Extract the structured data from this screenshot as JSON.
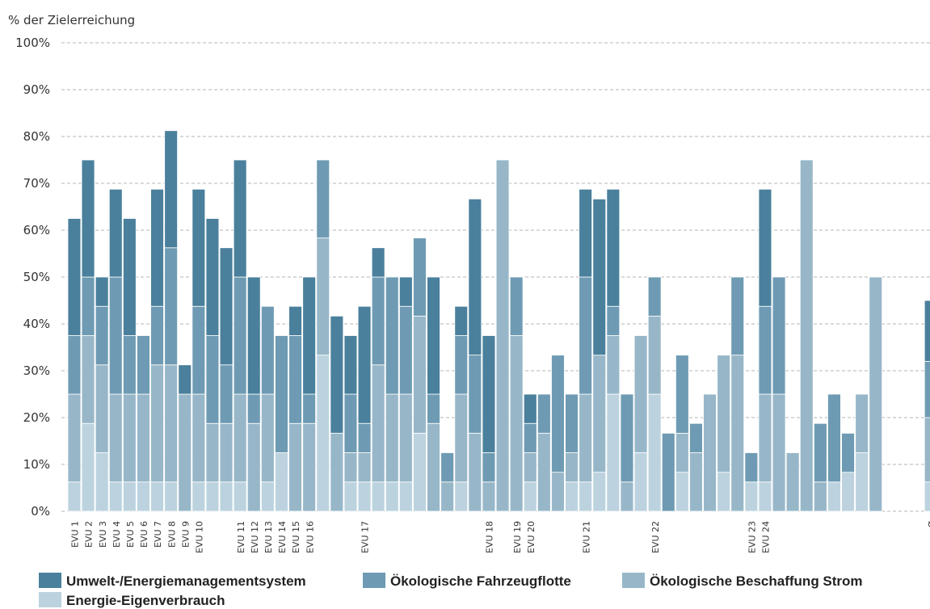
{
  "chart_data": {
    "type": "stacked_bar",
    "y_axis_label": "% der Zielerreichung",
    "ylim": [
      0,
      100
    ],
    "yticks": [
      {
        "value": 0,
        "label": "0%"
      },
      {
        "value": 10,
        "label": "10%"
      },
      {
        "value": 20,
        "label": "20%"
      },
      {
        "value": 30,
        "label": "30%"
      },
      {
        "value": 40,
        "label": "40%"
      },
      {
        "value": 50,
        "label": "50%"
      },
      {
        "value": 60,
        "label": "60%"
      },
      {
        "value": 70,
        "label": "70%"
      },
      {
        "value": 80,
        "label": "80%"
      },
      {
        "value": 90,
        "label": "90%"
      },
      {
        "value": 100,
        "label": "100%"
      }
    ],
    "grid": true,
    "categories": [
      "EVU 1",
      "EVU 2",
      "EVU 3",
      "EVU 4",
      "EVU 5",
      "EVU 6",
      "EVU 7",
      "EVU 8",
      "EVU 9",
      "EVU 10",
      null,
      null,
      "EVU 11",
      "EVU 12",
      "EVU 13",
      "EVU 14",
      "EVU 15",
      "EVU 16",
      null,
      null,
      null,
      "EVU 17",
      null,
      null,
      null,
      null,
      null,
      null,
      null,
      null,
      "EVU 18",
      null,
      "EVU 19",
      "EVU 20",
      null,
      null,
      null,
      "EVU 21",
      null,
      null,
      null,
      null,
      "EVU 22",
      null,
      null,
      null,
      null,
      null,
      null,
      "EVU 23",
      "EVU 24",
      null,
      null,
      null,
      null,
      null,
      null,
      null,
      null,
      null,
      null,
      null,
      "Ø"
    ],
    "series": [
      {
        "name": "Energie-Eigenverbrauch",
        "color": "#bcd3df",
        "values": [
          6.25,
          18.75,
          12.5,
          6.25,
          6.25,
          6.25,
          6.25,
          6.25,
          0,
          6.25,
          6.25,
          6.25,
          6.25,
          0,
          6.25,
          12.5,
          0,
          0,
          33.33,
          0,
          6.25,
          6.25,
          6.25,
          6.25,
          6.25,
          16.67,
          0,
          0,
          6.25,
          0,
          0,
          0,
          0,
          6.25,
          0,
          0,
          6.25,
          6.25,
          8.33,
          25,
          0,
          12.5,
          25,
          0,
          8.33,
          0,
          0,
          8.33,
          0,
          6.25,
          6.25,
          0,
          0,
          0,
          0,
          6.25,
          8.33,
          12.5,
          0,
          0,
          0,
          0,
          6.25
        ]
      },
      {
        "name": "Ökologische Beschaffung Strom",
        "color": "#97b7c9",
        "values": [
          18.75,
          18.75,
          18.75,
          18.75,
          18.75,
          18.75,
          25,
          25,
          25,
          18.75,
          12.5,
          12.5,
          18.75,
          18.75,
          18.75,
          0,
          18.75,
          18.75,
          25,
          16.67,
          6.25,
          6.25,
          25,
          18.75,
          18.75,
          25,
          18.75,
          6.25,
          18.75,
          16.67,
          6.25,
          75,
          37.5,
          6.25,
          16.67,
          8.33,
          6.25,
          18.75,
          25,
          12.5,
          6.25,
          25,
          16.67,
          0,
          8.33,
          12.5,
          25,
          25,
          33.33,
          0,
          18.75,
          25,
          12.5,
          75,
          6.25,
          0,
          0,
          12.5,
          50,
          0,
          0,
          0,
          13.75
        ]
      },
      {
        "name": "Ökologische Fahrzeugflotte",
        "color": "#6e9bb3",
        "values": [
          12.5,
          12.5,
          12.5,
          25,
          12.5,
          12.5,
          12.5,
          25,
          0,
          18.75,
          18.75,
          12.5,
          25,
          6.25,
          18.75,
          25,
          18.75,
          6.25,
          16.67,
          0,
          12.5,
          6.25,
          18.75,
          25,
          18.75,
          16.67,
          6.25,
          6.25,
          12.5,
          16.67,
          6.25,
          0,
          12.5,
          6.25,
          8.33,
          25,
          12.5,
          25,
          0,
          6.25,
          18.75,
          0,
          8.33,
          16.67,
          16.67,
          6.25,
          0,
          0,
          16.67,
          6.25,
          18.75,
          25,
          0,
          0,
          12.5,
          18.75,
          8.33,
          0,
          0,
          0,
          0,
          0,
          12
        ]
      },
      {
        "name": "Umwelt-/Energiemanagementsystem",
        "color": "#4a809c",
        "values": [
          25,
          25,
          6.25,
          18.75,
          25,
          0,
          25,
          25,
          6.25,
          25,
          25,
          25,
          25,
          25,
          0,
          0,
          6.25,
          25,
          0,
          25,
          12.5,
          25,
          6.25,
          0,
          6.25,
          0,
          25,
          0,
          6.25,
          33.33,
          25,
          0,
          0,
          6.25,
          0,
          0,
          0,
          18.75,
          33.33,
          25,
          0,
          0,
          0,
          0,
          0,
          0,
          0,
          0,
          0,
          0,
          25,
          0,
          0,
          0,
          0,
          0,
          0,
          0,
          0,
          0,
          0,
          0,
          13
        ]
      }
    ],
    "legend_order": [
      3,
      2,
      1,
      0
    ]
  }
}
